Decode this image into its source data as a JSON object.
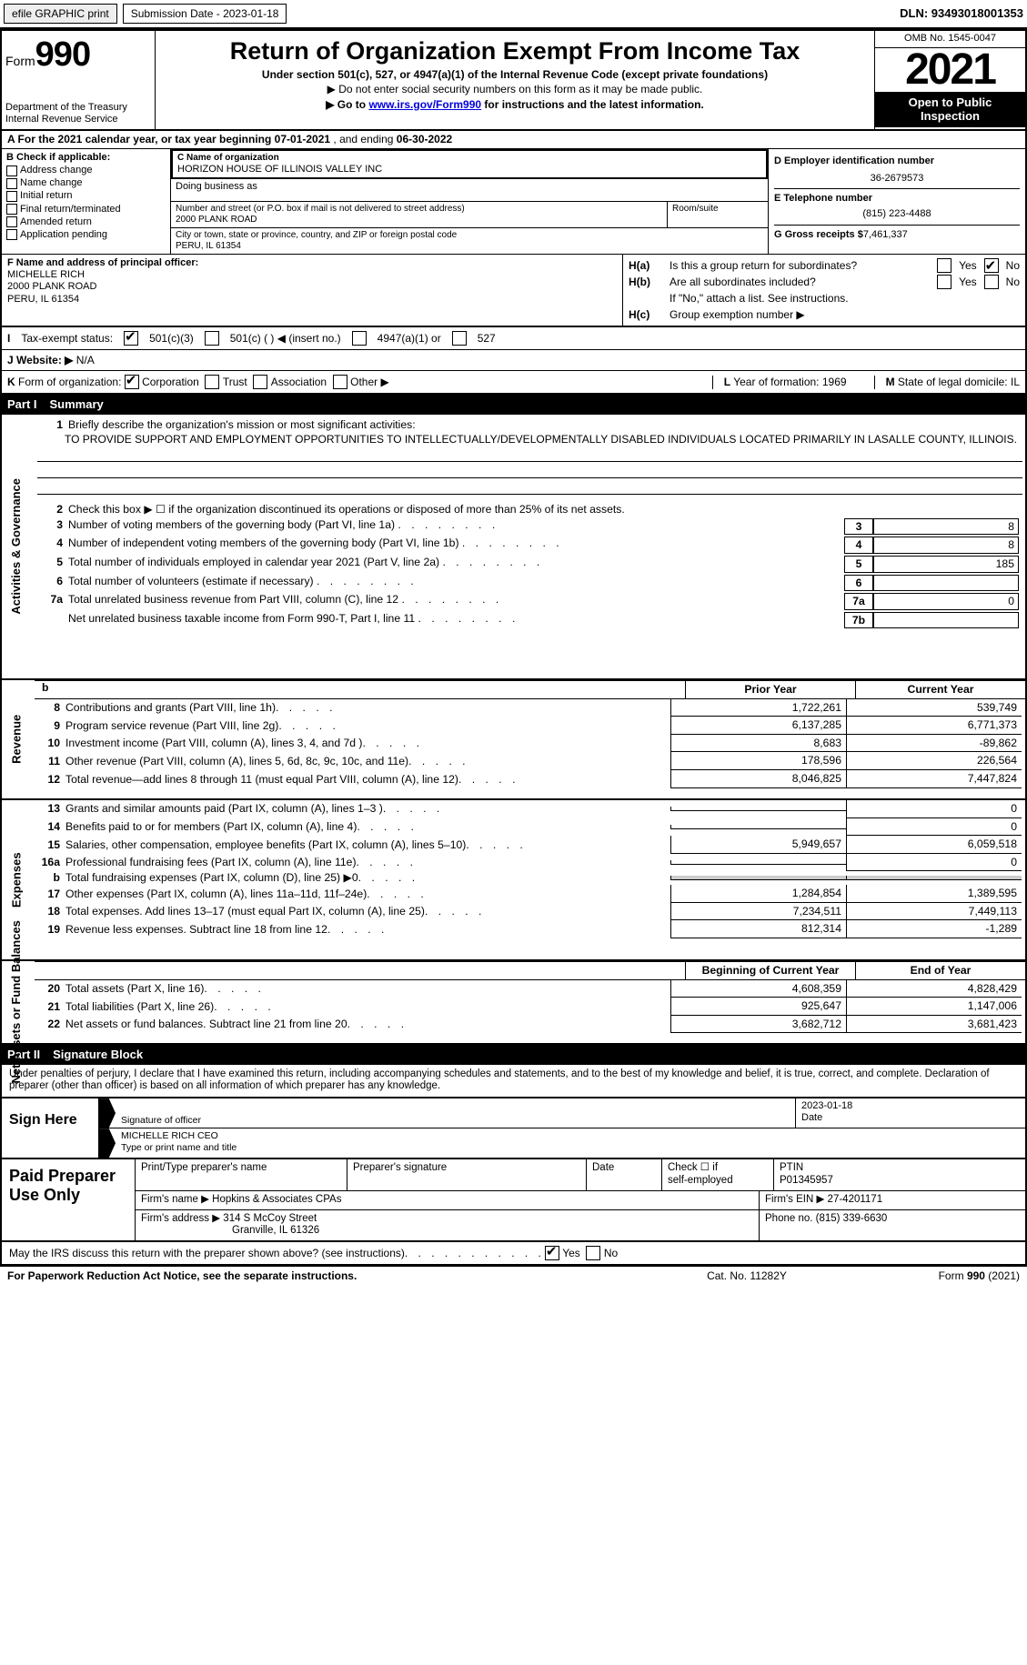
{
  "topbar": {
    "efile": "efile GRAPHIC print",
    "submission": "Submission Date - 2023-01-18",
    "dln": "DLN: 93493018001353"
  },
  "header": {
    "form_word": "Form",
    "form_num": "990",
    "dept": "Department of the Treasury",
    "irs": "Internal Revenue Service",
    "title": "Return of Organization Exempt From Income Tax",
    "sub1": "Under section 501(c), 527, or 4947(a)(1) of the Internal Revenue Code (except private foundations)",
    "sub2": "▶ Do not enter social security numbers on this form as it may be made public.",
    "sub3_pre": "▶ Go to ",
    "sub3_link": "www.irs.gov/Form990",
    "sub3_post": " for instructions and the latest information.",
    "omb": "OMB No. 1545-0047",
    "year": "2021",
    "pub": "Open to Public Inspection"
  },
  "rowA": {
    "pre": "A For the 2021 calendar year, or tax year beginning ",
    "begin": "07-01-2021",
    "mid": " , and ending ",
    "end": "06-30-2022"
  },
  "B": {
    "hdr": "B Check if applicable:",
    "items": [
      "Address change",
      "Name change",
      "Initial return",
      "Final return/terminated",
      "Amended return",
      "Application pending"
    ]
  },
  "C": {
    "lbl": "C Name of organization",
    "name": "HORIZON HOUSE OF ILLINOIS VALLEY INC",
    "dba": "Doing business as",
    "street_lbl": "Number and street (or P.O. box if mail is not delivered to street address)",
    "street": "2000 PLANK ROAD",
    "room_lbl": "Room/suite",
    "city_lbl": "City or town, state or province, country, and ZIP or foreign postal code",
    "city": "PERU, IL  61354"
  },
  "D": {
    "lbl": "D Employer identification number",
    "val": "36-2679573"
  },
  "E": {
    "lbl": "E Telephone number",
    "val": "(815) 223-4488"
  },
  "G": {
    "lbl": "G Gross receipts $",
    "val": "7,461,337"
  },
  "F": {
    "lbl": "F  Name and address of principal officer:",
    "name": "MICHELLE RICH",
    "addr1": "2000 PLANK ROAD",
    "addr2": "PERU, IL  61354"
  },
  "H": {
    "a_lbl": "H(a)",
    "a_txt": "Is this a group return for subordinates?",
    "b_lbl": "H(b)",
    "b_txt": "Are all subordinates included?",
    "note": "If \"No,\" attach a list. See instructions.",
    "c_lbl": "H(c)",
    "c_txt": "Group exemption number ▶",
    "yes": "Yes",
    "no": "No"
  },
  "I": {
    "lbl": "I",
    "txt": "Tax-exempt status:",
    "o1": "501(c)(3)",
    "o2": "501(c) (   ) ◀ (insert no.)",
    "o3": "4947(a)(1) or",
    "o4": "527"
  },
  "J": {
    "lbl": "J",
    "txt": "Website: ▶",
    "val": "N/A"
  },
  "K": {
    "lbl": "K",
    "txt": "Form of organization:",
    "o1": "Corporation",
    "o2": "Trust",
    "o3": "Association",
    "o4": "Other ▶"
  },
  "L": {
    "lbl": "L",
    "txt": "Year of formation:",
    "val": "1969"
  },
  "M": {
    "lbl": "M",
    "txt": "State of legal domicile:",
    "val": "IL"
  },
  "part1": {
    "part": "Part I",
    "title": "Summary"
  },
  "s1": {
    "q1": "Briefly describe the organization's mission or most significant activities:",
    "mission": "TO PROVIDE SUPPORT AND EMPLOYMENT OPPORTUNITIES TO INTELLECTUALLY/DEVELOPMENTALLY DISABLED INDIVIDUALS LOCATED PRIMARILY IN LASALLE COUNTY, ILLINOIS.",
    "q2": "Check this box ▶ ☐  if the organization discontinued its operations or disposed of more than 25% of its net assets.",
    "lines": [
      {
        "n": "3",
        "t": "Number of voting members of the governing body (Part VI, line 1a)",
        "b": "3",
        "v": "8"
      },
      {
        "n": "4",
        "t": "Number of independent voting members of the governing body (Part VI, line 1b)",
        "b": "4",
        "v": "8"
      },
      {
        "n": "5",
        "t": "Total number of individuals employed in calendar year 2021 (Part V, line 2a)",
        "b": "5",
        "v": "185"
      },
      {
        "n": "6",
        "t": "Total number of volunteers (estimate if necessary)",
        "b": "6",
        "v": ""
      },
      {
        "n": "7a",
        "t": "Total unrelated business revenue from Part VIII, column (C), line 12",
        "b": "7a",
        "v": "0"
      },
      {
        "n": "",
        "t": "Net unrelated business taxable income from Form 990-T, Part I, line 11",
        "b": "7b",
        "v": ""
      }
    ]
  },
  "colhdr": {
    "py": "Prior Year",
    "cy": "Current Year"
  },
  "rev": [
    {
      "n": "8",
      "t": "Contributions and grants (Part VIII, line 1h)",
      "v1": "1,722,261",
      "v2": "539,749"
    },
    {
      "n": "9",
      "t": "Program service revenue (Part VIII, line 2g)",
      "v1": "6,137,285",
      "v2": "6,771,373"
    },
    {
      "n": "10",
      "t": "Investment income (Part VIII, column (A), lines 3, 4, and 7d )",
      "v1": "8,683",
      "v2": "-89,862"
    },
    {
      "n": "11",
      "t": "Other revenue (Part VIII, column (A), lines 5, 6d, 8c, 9c, 10c, and 11e)",
      "v1": "178,596",
      "v2": "226,564"
    },
    {
      "n": "12",
      "t": "Total revenue—add lines 8 through 11 (must equal Part VIII, column (A), line 12)",
      "v1": "8,046,825",
      "v2": "7,447,824"
    }
  ],
  "exp": [
    {
      "n": "13",
      "t": "Grants and similar amounts paid (Part IX, column (A), lines 1–3 )",
      "v1": "",
      "v2": "0"
    },
    {
      "n": "14",
      "t": "Benefits paid to or for members (Part IX, column (A), line 4)",
      "v1": "",
      "v2": "0"
    },
    {
      "n": "15",
      "t": "Salaries, other compensation, employee benefits (Part IX, column (A), lines 5–10)",
      "v1": "5,949,657",
      "v2": "6,059,518"
    },
    {
      "n": "16a",
      "t": "Professional fundraising fees (Part IX, column (A), line 11e)",
      "v1": "",
      "v2": "0"
    },
    {
      "n": "b",
      "t": "Total fundraising expenses (Part IX, column (D), line 25) ▶0",
      "v1": "sh",
      "v2": "sh"
    },
    {
      "n": "17",
      "t": "Other expenses (Part IX, column (A), lines 11a–11d, 11f–24e)",
      "v1": "1,284,854",
      "v2": "1,389,595"
    },
    {
      "n": "18",
      "t": "Total expenses. Add lines 13–17 (must equal Part IX, column (A), line 25)",
      "v1": "7,234,511",
      "v2": "7,449,113"
    },
    {
      "n": "19",
      "t": "Revenue less expenses. Subtract line 18 from line 12",
      "v1": "812,314",
      "v2": "-1,289"
    }
  ],
  "colhdr2": {
    "py": "Beginning of Current Year",
    "cy": "End of Year"
  },
  "net": [
    {
      "n": "20",
      "t": "Total assets (Part X, line 16)",
      "v1": "4,608,359",
      "v2": "4,828,429"
    },
    {
      "n": "21",
      "t": "Total liabilities (Part X, line 26)",
      "v1": "925,647",
      "v2": "1,147,006"
    },
    {
      "n": "22",
      "t": "Net assets or fund balances. Subtract line 21 from line 20",
      "v1": "3,682,712",
      "v2": "3,681,423"
    }
  ],
  "sides": {
    "s1": "Activities & Governance",
    "s2": "Revenue",
    "s3": "Expenses",
    "s4": "Net Assets or Fund Balances"
  },
  "part2": {
    "part": "Part II",
    "title": "Signature Block"
  },
  "decl": "Under penalties of perjury, I declare that I have examined this return, including accompanying schedules and statements, and to the best of my knowledge and belief, it is true, correct, and complete. Declaration of preparer (other than officer) is based on all information of which preparer has any knowledge.",
  "sign": {
    "hdr": "Sign Here",
    "sig_lbl": "Signature of officer",
    "date": "2023-01-18",
    "name": "MICHELLE RICH CEO",
    "name_lbl": "Type or print name and title"
  },
  "paid": {
    "hdr": "Paid Preparer Use Only",
    "c1": "Print/Type preparer's name",
    "c2": "Preparer's signature",
    "c3": "Date",
    "c4a": "Check ☐ if",
    "c4b": "self-employed",
    "c5": "PTIN",
    "ptin": "P01345957",
    "firm_lbl": "Firm's name    ▶",
    "firm": "Hopkins & Associates CPAs",
    "ein_lbl": "Firm's EIN ▶",
    "ein": "27-4201171",
    "addr_lbl": "Firm's address ▶",
    "addr1": "314 S McCoy Street",
    "addr2": "Granville, IL  61326",
    "phone_lbl": "Phone no.",
    "phone": "(815) 339-6630"
  },
  "discuss": {
    "txt": "May the IRS discuss this return with the preparer shown above? (see instructions)",
    "yes": "Yes",
    "no": "No"
  },
  "foot": {
    "f1": "For Paperwork Reduction Act Notice, see the separate instructions.",
    "f2": "Cat. No. 11282Y",
    "f3": "Form 990 (2021)"
  }
}
